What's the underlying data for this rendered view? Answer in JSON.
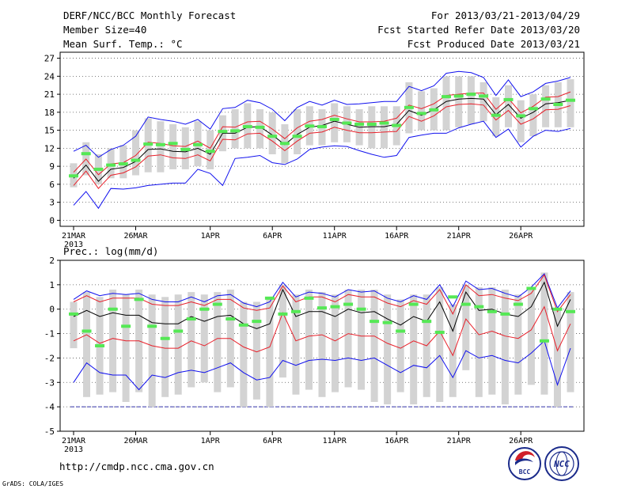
{
  "header": {
    "title": "DERF/NCC/BCC Monthly Forecast",
    "member_size": "Member Size=40",
    "variable": "Mean Surf. Temp.: °C",
    "forecast_range": "For 2013/03/21-2013/04/29",
    "started": "Fcst Started Refer Date 2013/03/20",
    "produced": "Fcst Produced Date 2013/03/21"
  },
  "footer": {
    "url": "http://cmdp.ncc.cma.gov.cn",
    "grads": "GrADS: COLA/IGES",
    "logo1_text": "BCC",
    "logo2_text": "NCC"
  },
  "colors": {
    "box": "#d3d3d3",
    "median": "#55e855",
    "mean": "#000000",
    "std": "#e8202a",
    "extreme": "#1010ee",
    "grid": "#555555"
  },
  "chart_data": [
    {
      "type": "box",
      "title": "Mean Surf. Temp.: °C",
      "ylim": [
        -1,
        28
      ],
      "yticks": [
        0,
        3,
        6,
        9,
        12,
        15,
        18,
        21,
        24,
        27
      ],
      "xtick_labels": [
        "21MAR",
        "26MAR",
        "1APR",
        "6APR",
        "11APR",
        "16APR",
        "21APR",
        "26APR"
      ],
      "xtick_days": [
        0,
        5,
        11,
        16,
        21,
        26,
        31,
        36
      ],
      "year_label": "2013",
      "median": [
        7.4,
        11.1,
        8.5,
        9.2,
        9.4,
        10.0,
        12.7,
        12.6,
        12.8,
        11.8,
        12.6,
        11.5,
        14.8,
        14.9,
        15.6,
        15.5,
        14.0,
        12.8,
        14.0,
        15.7,
        15.6,
        16.8,
        16.2,
        16.0,
        16.0,
        16.2,
        15.8,
        18.8,
        17.8,
        18.4,
        20.6,
        20.7,
        21.0,
        20.7,
        17.5,
        20.1,
        17.4,
        18.6,
        20.2,
        19.3,
        20.0
      ],
      "mean": [
        7.0,
        9.2,
        6.5,
        8.5,
        8.8,
        9.8,
        11.8,
        11.9,
        11.5,
        11.4,
        12.0,
        11.0,
        14.5,
        14.5,
        15.5,
        15.6,
        14.2,
        12.6,
        14.3,
        15.5,
        15.8,
        16.5,
        16.0,
        15.5,
        15.6,
        15.6,
        16.0,
        18.3,
        17.5,
        18.4,
        19.8,
        20.2,
        20.3,
        20.2,
        17.6,
        19.3,
        17.0,
        18.0,
        19.4,
        19.6,
        20.0
      ],
      "upper_std": [
        8.0,
        10.2,
        7.6,
        9.4,
        9.6,
        10.8,
        13.0,
        12.8,
        12.4,
        12.3,
        13.2,
        12.0,
        15.6,
        15.5,
        16.4,
        16.5,
        15.2,
        13.6,
        15.4,
        16.5,
        16.8,
        17.5,
        16.9,
        16.4,
        16.4,
        16.5,
        17.0,
        19.2,
        18.6,
        19.4,
        20.8,
        21.0,
        21.2,
        21.2,
        18.5,
        20.3,
        17.9,
        19.0,
        20.5,
        20.6,
        21.4
      ],
      "lower_std": [
        5.8,
        8.2,
        5.3,
        7.5,
        7.9,
        8.9,
        10.7,
        10.9,
        10.4,
        10.3,
        10.9,
        9.9,
        13.5,
        13.4,
        14.4,
        14.5,
        13.2,
        11.6,
        13.2,
        14.5,
        14.7,
        15.5,
        15.0,
        14.6,
        14.6,
        14.7,
        14.8,
        17.3,
        16.5,
        17.4,
        18.9,
        19.3,
        19.4,
        19.2,
        16.7,
        18.3,
        16.0,
        16.9,
        18.4,
        18.5,
        19.1
      ],
      "upper_extreme": [
        11.5,
        12.5,
        10.5,
        11.8,
        12.5,
        14.0,
        17.2,
        16.8,
        16.5,
        16.0,
        16.8,
        15.2,
        18.6,
        18.8,
        20.0,
        19.6,
        18.5,
        16.6,
        18.8,
        19.8,
        19.2,
        20.0,
        19.3,
        19.4,
        19.6,
        19.8,
        19.8,
        22.3,
        21.6,
        22.4,
        24.5,
        24.8,
        24.6,
        23.8,
        20.8,
        23.4,
        20.6,
        21.4,
        22.8,
        23.2,
        23.8
      ],
      "lower_extreme": [
        2.5,
        4.8,
        2.0,
        5.3,
        5.2,
        5.4,
        5.8,
        6.0,
        6.2,
        6.2,
        8.5,
        7.8,
        5.8,
        10.3,
        10.5,
        10.8,
        9.6,
        9.3,
        10.2,
        11.8,
        12.2,
        12.4,
        12.3,
        11.6,
        11.0,
        10.5,
        10.8,
        13.8,
        14.2,
        14.5,
        14.5,
        15.4,
        16.0,
        16.5,
        13.8,
        15.2,
        12.2,
        14.0,
        15.0,
        14.8,
        15.3
      ],
      "box_top": [
        9.5,
        13.0,
        11.0,
        12.0,
        12.5,
        15.0,
        17.0,
        16.5,
        16.0,
        15.5,
        16.5,
        15.0,
        17.5,
        18.5,
        19.5,
        18.5,
        18.0,
        16.0,
        18.5,
        19.0,
        18.5,
        19.5,
        19.0,
        18.5,
        19.0,
        19.0,
        19.0,
        23.0,
        21.5,
        22.0,
        24.0,
        24.0,
        24.0,
        23.0,
        20.5,
        22.5,
        20.0,
        21.0,
        22.5,
        23.0,
        23.5
      ],
      "box_bottom": [
        5.5,
        7.5,
        6.0,
        7.0,
        7.0,
        7.5,
        8.0,
        8.0,
        8.5,
        8.5,
        9.0,
        8.5,
        11.5,
        12.0,
        12.0,
        12.0,
        11.0,
        9.5,
        11.0,
        12.5,
        12.5,
        13.0,
        13.0,
        12.5,
        12.0,
        12.0,
        12.5,
        14.5,
        15.0,
        15.0,
        15.0,
        15.5,
        16.0,
        16.5,
        14.0,
        15.5,
        13.0,
        14.0,
        15.5,
        15.5,
        15.5
      ]
    },
    {
      "type": "box",
      "title": "Prec.: log(mm/d)",
      "ylim": [
        -5,
        2
      ],
      "yticks": [
        -5,
        -4,
        -3,
        -2,
        -1,
        0,
        1,
        2
      ],
      "xtick_labels": [
        "21MAR",
        "26MAR",
        "1APR",
        "6APR",
        "11APR",
        "16APR",
        "21APR",
        "26APR"
      ],
      "xtick_days": [
        0,
        5,
        11,
        16,
        21,
        26,
        31,
        36
      ],
      "year_label": "2013",
      "baseline": -4,
      "median": [
        -0.2,
        -0.9,
        -1.5,
        0.0,
        -0.7,
        0.4,
        -0.7,
        -1.2,
        -0.9,
        -0.4,
        0.0,
        0.2,
        -0.4,
        -0.65,
        -0.5,
        0.45,
        -0.2,
        -0.1,
        0.45,
        0.05,
        0.1,
        0.2,
        0.0,
        -0.5,
        -0.55,
        -0.9,
        0.2,
        -0.5,
        -0.95,
        0.5,
        0.2,
        0.1,
        -0.1,
        -0.2,
        0.2,
        0.85,
        -1.3,
        0.0,
        -0.1
      ],
      "mean": [
        -0.3,
        -0.05,
        -0.3,
        -0.15,
        -0.25,
        -0.25,
        -0.55,
        -0.6,
        -0.6,
        -0.3,
        -0.5,
        -0.3,
        -0.25,
        -0.6,
        -0.8,
        -0.6,
        0.8,
        -0.3,
        -0.1,
        -0.1,
        -0.3,
        0.0,
        -0.15,
        -0.1,
        -0.4,
        -0.65,
        -0.3,
        -0.5,
        0.3,
        -0.9,
        0.7,
        -0.05,
        0.0,
        -0.2,
        -0.3,
        0.1,
        1.1,
        -0.7,
        0.4
      ],
      "upper_std": [
        0.3,
        0.55,
        0.3,
        0.45,
        0.45,
        0.45,
        0.2,
        0.15,
        0.15,
        0.3,
        0.15,
        0.4,
        0.4,
        0.05,
        -0.05,
        0.05,
        0.95,
        0.3,
        0.5,
        0.5,
        0.3,
        0.6,
        0.5,
        0.5,
        0.25,
        0.1,
        0.35,
        0.2,
        0.8,
        -0.2,
        1.0,
        0.55,
        0.6,
        0.45,
        0.35,
        0.65,
        1.4,
        -0.1,
        0.6
      ],
      "lower_std": [
        -1.3,
        -1.05,
        -1.4,
        -1.2,
        -1.3,
        -1.3,
        -1.5,
        -1.6,
        -1.6,
        -1.3,
        -1.5,
        -1.2,
        -1.2,
        -1.55,
        -1.75,
        -1.55,
        -0.15,
        -1.3,
        -1.1,
        -1.05,
        -1.3,
        -1.0,
        -1.1,
        -1.1,
        -1.4,
        -1.6,
        -1.3,
        -1.5,
        -0.9,
        -1.9,
        -0.4,
        -1.05,
        -0.9,
        -1.1,
        -1.2,
        -0.85,
        0.1,
        -1.7,
        -0.6
      ],
      "upper_extreme": [
        0.4,
        0.75,
        0.55,
        0.65,
        0.6,
        0.65,
        0.4,
        0.3,
        0.3,
        0.5,
        0.3,
        0.55,
        0.6,
        0.25,
        0.1,
        0.3,
        1.1,
        0.5,
        0.7,
        0.65,
        0.5,
        0.8,
        0.7,
        0.75,
        0.45,
        0.3,
        0.55,
        0.4,
        1.0,
        0.1,
        1.15,
        0.8,
        0.85,
        0.65,
        0.5,
        0.9,
        1.45,
        0.05,
        0.75
      ],
      "lower_extreme": [
        -3.0,
        -2.2,
        -2.6,
        -2.7,
        -2.7,
        -3.3,
        -2.7,
        -2.8,
        -2.6,
        -2.5,
        -2.6,
        -2.4,
        -2.2,
        -2.6,
        -2.9,
        -2.8,
        -2.1,
        -2.3,
        -2.1,
        -2.05,
        -2.1,
        -2.0,
        -2.1,
        -2.0,
        -2.3,
        -2.6,
        -2.3,
        -2.4,
        -1.9,
        -2.8,
        -1.7,
        -2.0,
        -1.9,
        -2.1,
        -2.2,
        -1.8,
        -1.3,
        -3.1,
        -1.6
      ],
      "box_top": [
        0.3,
        0.7,
        0.5,
        0.8,
        0.6,
        0.8,
        0.6,
        0.5,
        0.6,
        0.7,
        0.6,
        0.7,
        0.8,
        0.3,
        0.3,
        0.5,
        1.0,
        0.6,
        0.8,
        0.7,
        0.6,
        0.8,
        0.8,
        0.8,
        0.6,
        0.4,
        0.6,
        0.6,
        0.9,
        0.2,
        1.0,
        0.9,
        0.9,
        0.8,
        0.6,
        0.9,
        1.5,
        0.0,
        0.7
      ],
      "box_bottom": [
        -1.6,
        -3.6,
        -3.5,
        -3.4,
        -3.8,
        -3.4,
        -4.0,
        -3.6,
        -3.5,
        -3.2,
        -3.0,
        -3.4,
        -3.2,
        -4.0,
        -3.7,
        -4.0,
        -2.8,
        -3.5,
        -3.3,
        -3.6,
        -3.4,
        -3.2,
        -3.3,
        -3.8,
        -3.9,
        -3.4,
        -3.9,
        -3.6,
        -3.8,
        -3.6,
        -2.5,
        -3.6,
        -3.5,
        -3.9,
        -3.5,
        -3.1,
        -3.5,
        -4.0,
        -3.4
      ]
    }
  ]
}
